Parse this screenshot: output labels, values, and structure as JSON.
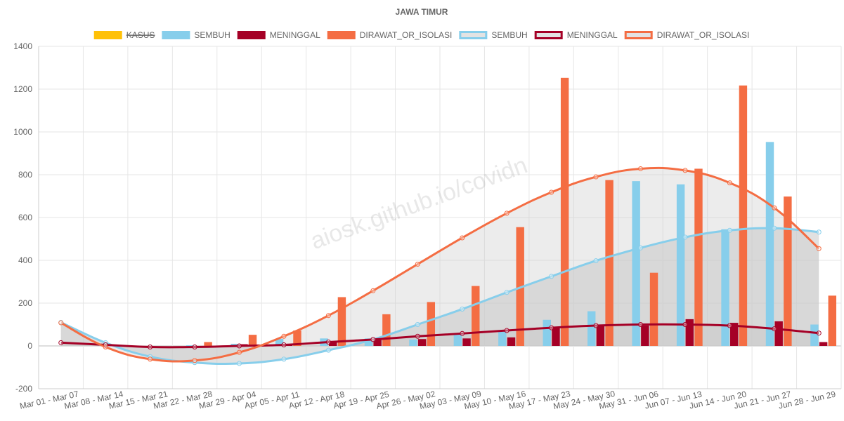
{
  "chart_data": {
    "type": "bar",
    "title": "JAWA TIMUR",
    "watermark": "aiosk.github.io/covidn",
    "categories": [
      "Mar 01 - Mar 07",
      "Mar 08 - Mar 14",
      "Mar 15 - Mar 21",
      "Mar 22 - Mar 28",
      "Mar 29 - Apr 04",
      "Apr 05 - Apr 11",
      "Apr 12 - Apr 18",
      "Apr 19 - Apr 25",
      "Apr 26 - May 02",
      "May 03 - May 09",
      "May 10 - May 16",
      "May 17 - May 23",
      "May 24 - May 30",
      "May 31 - Jun 06",
      "Jun 07 - Jun 13",
      "Jun 14 - Jun 20",
      "Jun 21 - Jun 27",
      "Jun 28 - Jun 29"
    ],
    "ylim": [
      -200,
      1400
    ],
    "yticks": [
      -200,
      0,
      200,
      400,
      600,
      800,
      1000,
      1200,
      1400
    ],
    "grid": true,
    "legend_position": "top",
    "series": [
      {
        "name": "KASUS",
        "kind": "bar",
        "color": "#FFC107",
        "hidden": true,
        "values": [
          0,
          0,
          0,
          0,
          0,
          0,
          0,
          0,
          0,
          0,
          0,
          0,
          0,
          0,
          0,
          0,
          0,
          0
        ]
      },
      {
        "name": "SEMBUH",
        "kind": "bar",
        "color": "#87CEEB",
        "values": [
          0,
          0,
          0,
          3,
          10,
          33,
          35,
          35,
          30,
          58,
          72,
          122,
          162,
          770,
          755,
          545,
          953,
          100
        ]
      },
      {
        "name": "MENINGGAL",
        "kind": "bar",
        "color": "#A50026",
        "values": [
          0,
          0,
          0,
          0,
          8,
          5,
          22,
          30,
          32,
          35,
          40,
          88,
          98,
          95,
          125,
          108,
          115,
          18
        ]
      },
      {
        "name": "DIRAWAT_OR_ISOLASI",
        "kind": "bar",
        "color": "#F46D43",
        "values": [
          0,
          0,
          0,
          18,
          52,
          72,
          228,
          148,
          205,
          280,
          555,
          1253,
          775,
          342,
          828,
          1217,
          698,
          235
        ]
      },
      {
        "name": "SEMBUH",
        "kind": "line",
        "color": "#87CEEB",
        "fill": "rgba(200,200,200,0.55)",
        "values": [
          110,
          15,
          -50,
          -78,
          -82,
          -62,
          -20,
          30,
          100,
          172,
          250,
          325,
          398,
          458,
          508,
          540,
          550,
          532
        ]
      },
      {
        "name": "MENINGGAL",
        "kind": "line",
        "color": "#A50026",
        "fill": "rgba(200,200,200,0.45)",
        "values": [
          15,
          5,
          -5,
          -5,
          0,
          5,
          18,
          30,
          45,
          58,
          72,
          85,
          95,
          100,
          100,
          95,
          80,
          60
        ]
      },
      {
        "name": "DIRAWAT_OR_ISOLASI",
        "kind": "line",
        "color": "#F46D43",
        "fill": "rgba(200,200,200,0.35)",
        "values": [
          108,
          -5,
          -62,
          -68,
          -30,
          45,
          142,
          258,
          382,
          505,
          620,
          718,
          790,
          828,
          820,
          762,
          645,
          455
        ]
      }
    ]
  }
}
